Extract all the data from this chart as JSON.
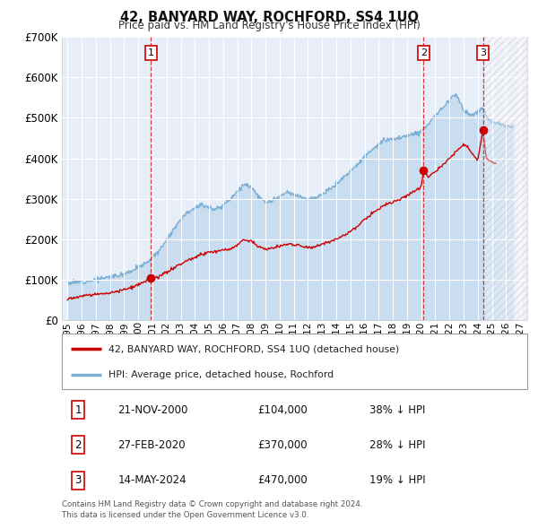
{
  "title": "42, BANYARD WAY, ROCHFORD, SS4 1UQ",
  "subtitle": "Price paid vs. HM Land Registry's House Price Index (HPI)",
  "legend_label_red": "42, BANYARD WAY, ROCHFORD, SS4 1UQ (detached house)",
  "legend_label_blue": "HPI: Average price, detached house, Rochford",
  "footer_line1": "Contains HM Land Registry data © Crown copyright and database right 2024.",
  "footer_line2": "This data is licensed under the Open Government Licence v3.0.",
  "transactions": [
    {
      "num": 1,
      "date": "21-NOV-2000",
      "price": 104000,
      "hpi_diff": "38% ↓ HPI",
      "year": 2000.89
    },
    {
      "num": 2,
      "date": "27-FEB-2020",
      "price": 370000,
      "hpi_diff": "28% ↓ HPI",
      "year": 2020.16
    },
    {
      "num": 3,
      "date": "14-MAY-2024",
      "price": 470000,
      "hpi_diff": "19% ↓ HPI",
      "year": 2024.37
    }
  ],
  "red_color": "#cc0000",
  "blue_color": "#7bafd4",
  "blue_fill_color": "#c8ddf0",
  "background_chart": "#e8eef8",
  "background_fig": "#ffffff",
  "grid_color": "#ffffff",
  "hatch_color": "#cccccc",
  "ylim": [
    0,
    700000
  ],
  "xlim_start": 1994.6,
  "xlim_end": 2027.5,
  "yticks": [
    0,
    100000,
    200000,
    300000,
    400000,
    500000,
    600000,
    700000
  ],
  "ytick_labels": [
    "£0",
    "£100K",
    "£200K",
    "£300K",
    "£400K",
    "£500K",
    "£600K",
    "£700K"
  ],
  "xtick_years": [
    1995,
    1996,
    1997,
    1998,
    1999,
    2000,
    2001,
    2002,
    2003,
    2004,
    2005,
    2006,
    2007,
    2008,
    2009,
    2010,
    2011,
    2012,
    2013,
    2014,
    2015,
    2016,
    2017,
    2018,
    2019,
    2020,
    2021,
    2022,
    2023,
    2024,
    2025,
    2026,
    2027
  ],
  "hpi_anchors": [
    [
      1995.0,
      92000
    ],
    [
      1995.5,
      93000
    ],
    [
      1996.0,
      95000
    ],
    [
      1996.5,
      97000
    ],
    [
      1997.0,
      100000
    ],
    [
      1997.5,
      103000
    ],
    [
      1998.0,
      107000
    ],
    [
      1998.5,
      110000
    ],
    [
      1999.0,
      115000
    ],
    [
      1999.5,
      122000
    ],
    [
      2000.0,
      130000
    ],
    [
      2000.5,
      140000
    ],
    [
      2001.0,
      155000
    ],
    [
      2001.5,
      172000
    ],
    [
      2002.0,
      200000
    ],
    [
      2002.5,
      225000
    ],
    [
      2003.0,
      250000
    ],
    [
      2003.5,
      268000
    ],
    [
      2004.0,
      278000
    ],
    [
      2004.5,
      285000
    ],
    [
      2005.0,
      280000
    ],
    [
      2005.5,
      272000
    ],
    [
      2006.0,
      285000
    ],
    [
      2006.5,
      300000
    ],
    [
      2007.0,
      318000
    ],
    [
      2007.5,
      335000
    ],
    [
      2008.0,
      330000
    ],
    [
      2008.5,
      305000
    ],
    [
      2009.0,
      290000
    ],
    [
      2009.5,
      295000
    ],
    [
      2010.0,
      305000
    ],
    [
      2010.5,
      315000
    ],
    [
      2011.0,
      310000
    ],
    [
      2011.5,
      305000
    ],
    [
      2012.0,
      300000
    ],
    [
      2012.5,
      302000
    ],
    [
      2013.0,
      310000
    ],
    [
      2013.5,
      322000
    ],
    [
      2014.0,
      338000
    ],
    [
      2014.5,
      352000
    ],
    [
      2015.0,
      368000
    ],
    [
      2015.5,
      385000
    ],
    [
      2016.0,
      405000
    ],
    [
      2016.5,
      420000
    ],
    [
      2017.0,
      435000
    ],
    [
      2017.5,
      445000
    ],
    [
      2018.0,
      448000
    ],
    [
      2018.5,
      450000
    ],
    [
      2019.0,
      455000
    ],
    [
      2019.5,
      460000
    ],
    [
      2020.0,
      468000
    ],
    [
      2020.5,
      485000
    ],
    [
      2021.0,
      505000
    ],
    [
      2021.5,
      525000
    ],
    [
      2022.0,
      545000
    ],
    [
      2022.3,
      560000
    ],
    [
      2022.5,
      555000
    ],
    [
      2022.8,
      535000
    ],
    [
      2023.0,
      520000
    ],
    [
      2023.3,
      510000
    ],
    [
      2023.6,
      505000
    ],
    [
      2024.0,
      515000
    ],
    [
      2024.3,
      525000
    ],
    [
      2024.5,
      510000
    ],
    [
      2024.8,
      495000
    ],
    [
      2025.0,
      490000
    ],
    [
      2025.5,
      485000
    ],
    [
      2026.0,
      480000
    ],
    [
      2026.5,
      478000
    ]
  ],
  "red_anchors": [
    [
      1995.0,
      53000
    ],
    [
      1995.5,
      55000
    ],
    [
      1996.0,
      58000
    ],
    [
      1996.5,
      61000
    ],
    [
      1997.0,
      63000
    ],
    [
      1997.5,
      66000
    ],
    [
      1998.0,
      68000
    ],
    [
      1998.5,
      71000
    ],
    [
      1999.0,
      75000
    ],
    [
      1999.5,
      80000
    ],
    [
      2000.0,
      87000
    ],
    [
      2000.5,
      95000
    ],
    [
      2000.89,
      104000
    ],
    [
      2001.2,
      103000
    ],
    [
      2001.5,
      108000
    ],
    [
      2002.0,
      118000
    ],
    [
      2002.5,
      128000
    ],
    [
      2003.0,
      138000
    ],
    [
      2003.5,
      148000
    ],
    [
      2004.0,
      155000
    ],
    [
      2004.5,
      162000
    ],
    [
      2005.0,
      168000
    ],
    [
      2005.5,
      170000
    ],
    [
      2006.0,
      172000
    ],
    [
      2006.5,
      175000
    ],
    [
      2007.0,
      185000
    ],
    [
      2007.5,
      200000
    ],
    [
      2008.0,
      195000
    ],
    [
      2008.5,
      182000
    ],
    [
      2009.0,
      175000
    ],
    [
      2009.5,
      178000
    ],
    [
      2010.0,
      183000
    ],
    [
      2010.5,
      188000
    ],
    [
      2011.0,
      187000
    ],
    [
      2011.5,
      183000
    ],
    [
      2012.0,
      180000
    ],
    [
      2012.5,
      182000
    ],
    [
      2013.0,
      187000
    ],
    [
      2013.5,
      193000
    ],
    [
      2014.0,
      200000
    ],
    [
      2014.5,
      210000
    ],
    [
      2015.0,
      220000
    ],
    [
      2015.5,
      232000
    ],
    [
      2016.0,
      248000
    ],
    [
      2016.5,
      262000
    ],
    [
      2017.0,
      275000
    ],
    [
      2017.5,
      285000
    ],
    [
      2018.0,
      292000
    ],
    [
      2018.5,
      298000
    ],
    [
      2019.0,
      308000
    ],
    [
      2019.5,
      318000
    ],
    [
      2020.0,
      328000
    ],
    [
      2020.16,
      370000
    ],
    [
      2020.5,
      355000
    ],
    [
      2021.0,
      368000
    ],
    [
      2021.5,
      382000
    ],
    [
      2022.0,
      400000
    ],
    [
      2022.5,
      418000
    ],
    [
      2023.0,
      435000
    ],
    [
      2023.3,
      430000
    ],
    [
      2023.6,
      412000
    ],
    [
      2024.0,
      395000
    ],
    [
      2024.37,
      470000
    ],
    [
      2024.6,
      400000
    ],
    [
      2025.0,
      390000
    ],
    [
      2025.3,
      385000
    ]
  ]
}
